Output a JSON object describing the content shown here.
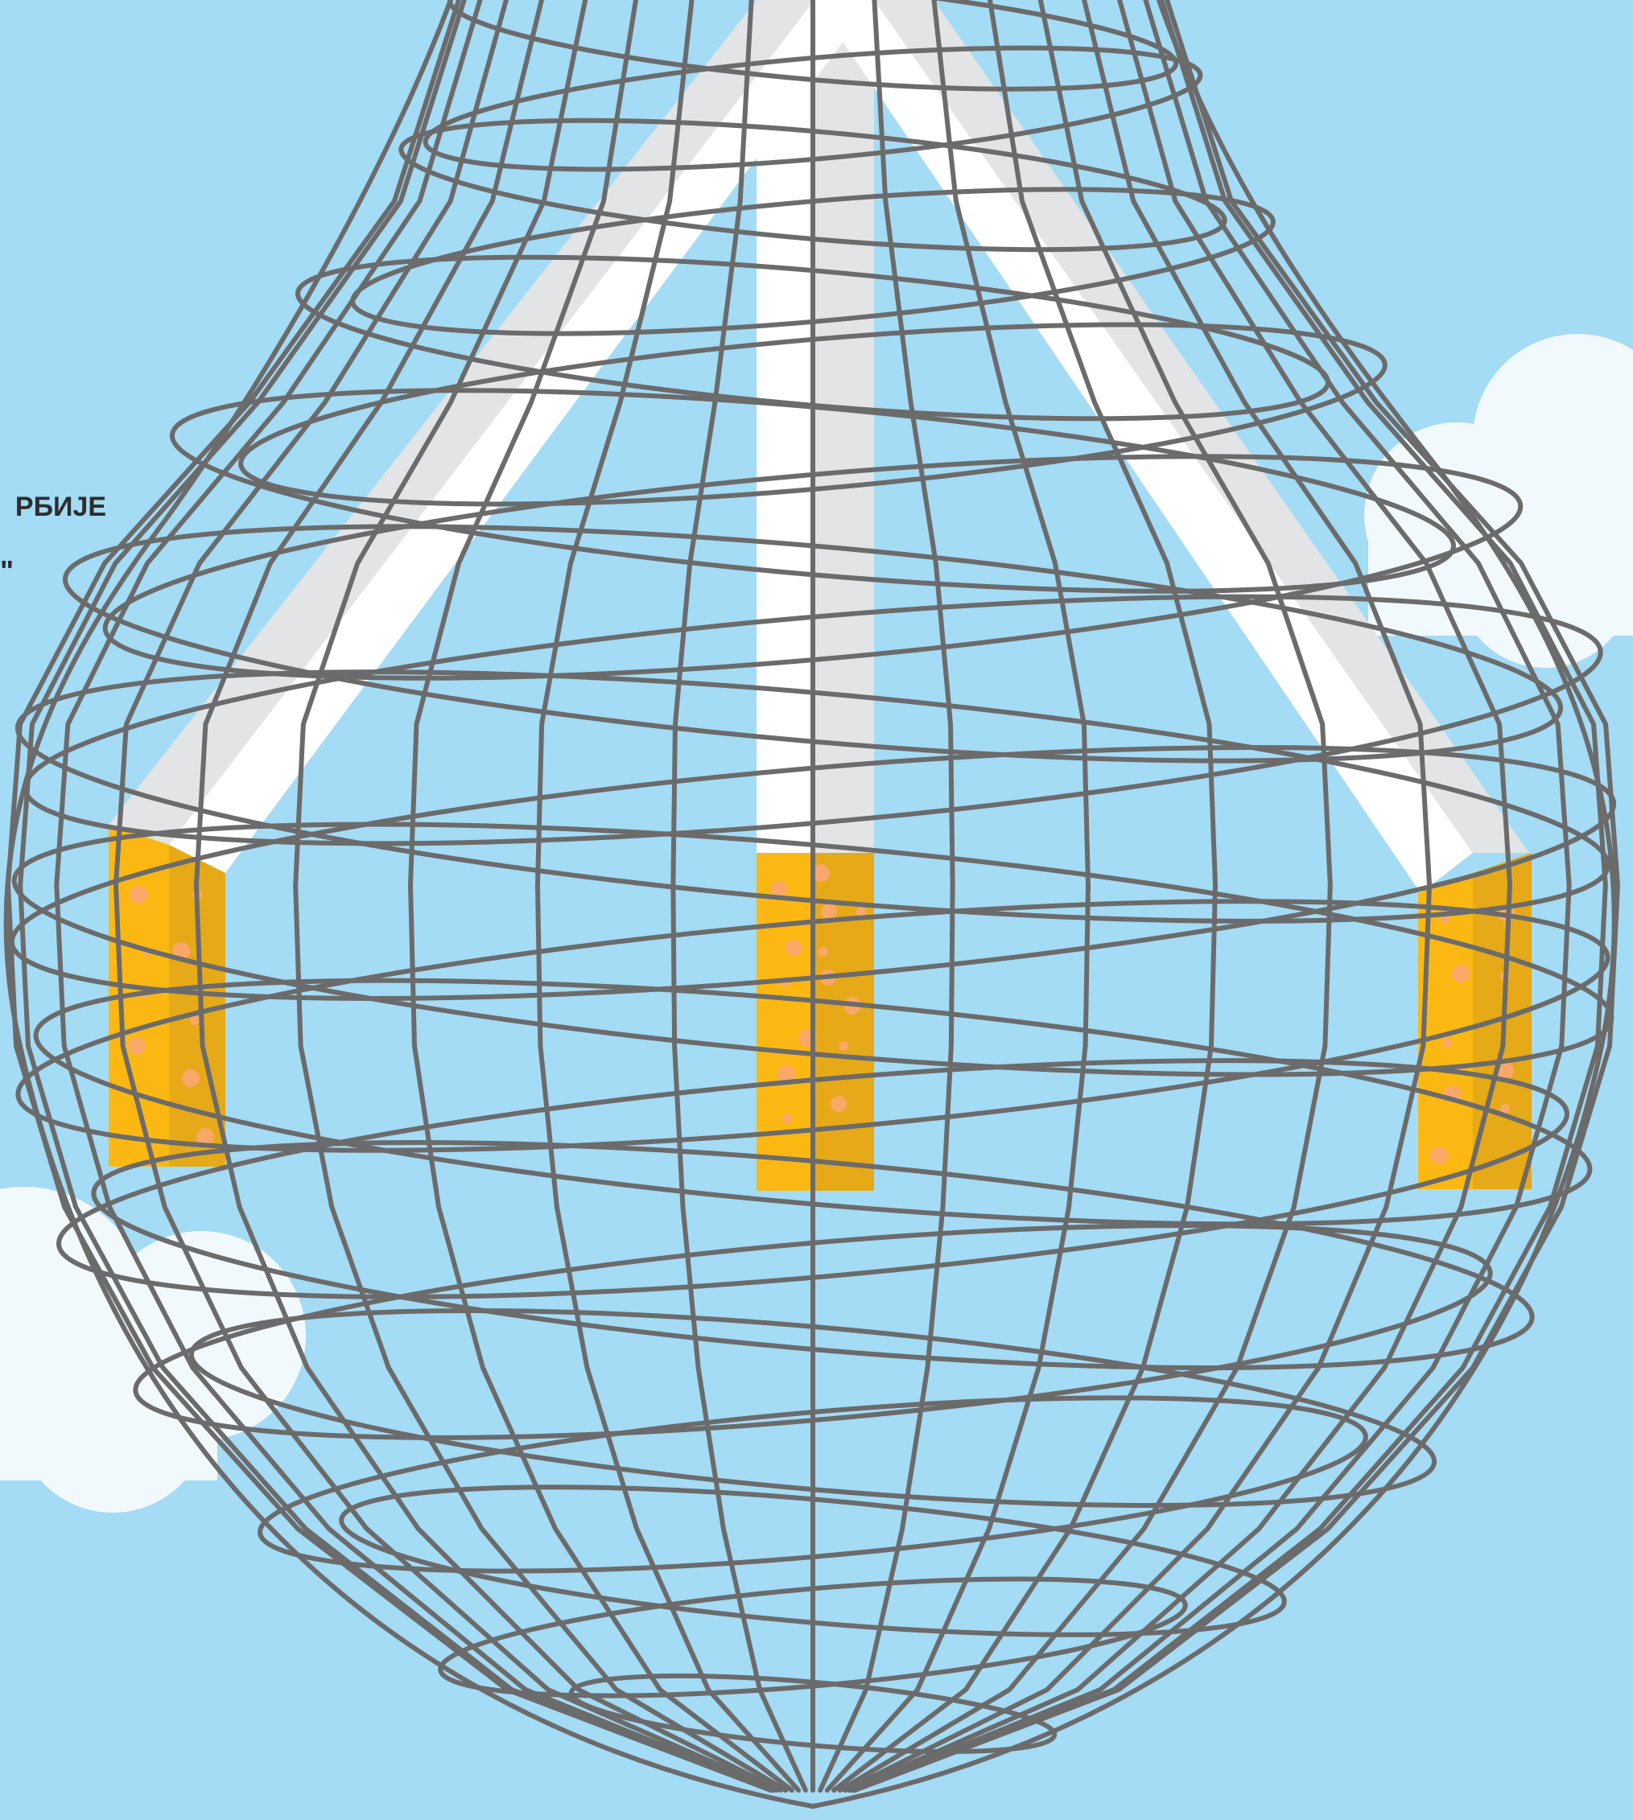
{
  "poster": {
    "cropped_text": {
      "line1": "РБИЈЕ",
      "line2": "\""
    },
    "colors": {
      "sky": "#a4dbf5",
      "cloud": "#f2f9fd",
      "net": "#6b6b6b",
      "paper_light": "#ffffff",
      "paper_shade": "#e2e4e6",
      "filter": "#fbb813",
      "filter_shade": "#e6a917",
      "filter_dots": "#f9a868"
    },
    "icons": [
      "cloud-icon",
      "cigarette-icon",
      "net-bag-icon"
    ]
  }
}
